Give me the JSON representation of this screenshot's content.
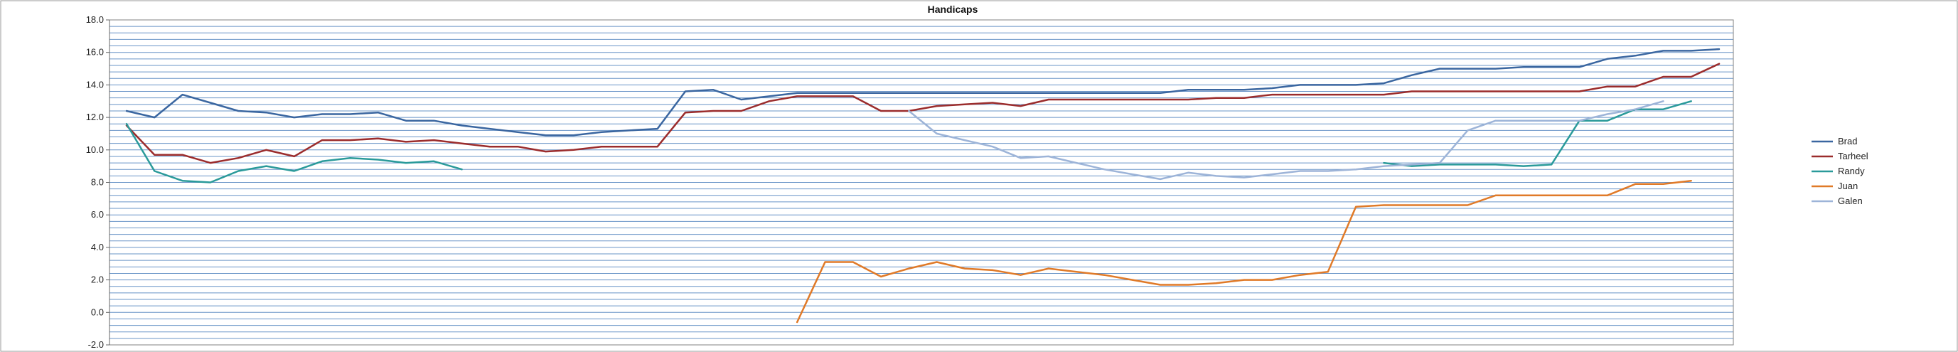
{
  "chart_data": {
    "type": "line",
    "title": "Handicaps",
    "xlabel": "",
    "ylabel": "",
    "ylim": [
      -2.0,
      18.0
    ],
    "y_major_ticks": [
      -2.0,
      0.0,
      2.0,
      4.0,
      6.0,
      8.0,
      10.0,
      12.0,
      14.0,
      16.0,
      18.0
    ],
    "y_tick_labels": [
      "-2.0",
      "0.0",
      "2.0",
      "4.0",
      "6.0",
      "8.0",
      "10.0",
      "12.0",
      "14.0",
      "16.0",
      "18.0"
    ],
    "y_minor_step": 0.4,
    "grid": true,
    "legend": "right",
    "x_count": 58,
    "series": [
      {
        "name": "Brad",
        "color": "#3a66a0",
        "values": [
          12.4,
          12.0,
          13.4,
          12.9,
          12.4,
          12.3,
          12.0,
          12.2,
          12.2,
          12.3,
          11.8,
          11.8,
          11.5,
          11.3,
          11.1,
          10.9,
          10.9,
          11.1,
          11.2,
          11.3,
          13.6,
          13.7,
          13.1,
          13.3,
          13.5,
          13.5,
          13.5,
          13.5,
          13.5,
          13.5,
          13.5,
          13.5,
          13.5,
          13.5,
          13.5,
          13.5,
          13.5,
          13.5,
          13.7,
          13.7,
          13.7,
          13.8,
          14.0,
          14.0,
          14.0,
          14.1,
          14.6,
          15.0,
          15.0,
          15.0,
          15.1,
          15.1,
          15.1,
          15.6,
          15.8,
          16.1,
          16.1,
          16.2
        ]
      },
      {
        "name": "Tarheel",
        "color": "#9b2c2c",
        "values": [
          11.5,
          9.7,
          9.7,
          9.2,
          9.5,
          10.0,
          9.6,
          10.6,
          10.6,
          10.7,
          10.5,
          10.6,
          10.4,
          10.2,
          10.2,
          9.9,
          10.0,
          10.2,
          10.2,
          10.2,
          12.3,
          12.4,
          12.4,
          13.0,
          13.3,
          13.3,
          13.3,
          12.4,
          12.4,
          12.7,
          12.8,
          12.9,
          12.7,
          13.1,
          13.1,
          13.1,
          13.1,
          13.1,
          13.1,
          13.2,
          13.2,
          13.4,
          13.4,
          13.4,
          13.4,
          13.4,
          13.6,
          13.6,
          13.6,
          13.6,
          13.6,
          13.6,
          13.6,
          13.9,
          13.9,
          14.5,
          14.5,
          15.3
        ]
      },
      {
        "name": "Randy",
        "color": "#2a9a9a",
        "values": [
          11.6,
          8.7,
          8.1,
          8.0,
          8.7,
          9.0,
          8.7,
          9.3,
          9.5,
          9.4,
          9.2,
          9.3,
          8.8,
          null,
          null,
          null,
          null,
          null,
          null,
          null,
          null,
          null,
          null,
          null,
          null,
          null,
          null,
          null,
          null,
          null,
          null,
          null,
          null,
          null,
          null,
          null,
          null,
          null,
          null,
          null,
          null,
          null,
          null,
          null,
          null,
          9.2,
          9.0,
          9.1,
          9.1,
          9.1,
          9.0,
          9.1,
          11.8,
          11.8,
          12.5,
          12.5,
          13.0
        ]
      },
      {
        "name": "Juan",
        "color": "#e07a28",
        "values": [
          null,
          null,
          null,
          null,
          null,
          null,
          null,
          null,
          null,
          null,
          null,
          null,
          null,
          null,
          null,
          null,
          null,
          null,
          null,
          null,
          null,
          null,
          null,
          null,
          -0.6,
          3.1,
          3.1,
          2.2,
          2.7,
          3.1,
          2.7,
          2.6,
          2.3,
          2.7,
          2.5,
          2.3,
          2.0,
          1.7,
          1.7,
          1.8,
          2.0,
          2.0,
          2.3,
          2.5,
          6.5,
          6.6,
          6.6,
          6.6,
          6.6,
          7.2,
          7.2,
          7.2,
          7.2,
          7.2,
          7.9,
          7.9,
          8.1
        ]
      },
      {
        "name": "Galen",
        "color": "#9db4d8",
        "values": [
          null,
          null,
          null,
          null,
          null,
          null,
          null,
          null,
          null,
          null,
          null,
          null,
          null,
          null,
          null,
          null,
          null,
          null,
          null,
          null,
          null,
          null,
          null,
          null,
          null,
          null,
          null,
          null,
          12.4,
          11.0,
          10.6,
          10.2,
          9.5,
          9.6,
          9.2,
          8.8,
          8.5,
          8.2,
          8.6,
          8.4,
          8.3,
          8.5,
          8.7,
          8.7,
          8.8,
          9.0,
          9.1,
          9.2,
          11.2,
          11.8,
          11.8,
          11.8,
          11.8,
          12.2,
          12.5,
          13.0,
          null
        ]
      }
    ]
  }
}
